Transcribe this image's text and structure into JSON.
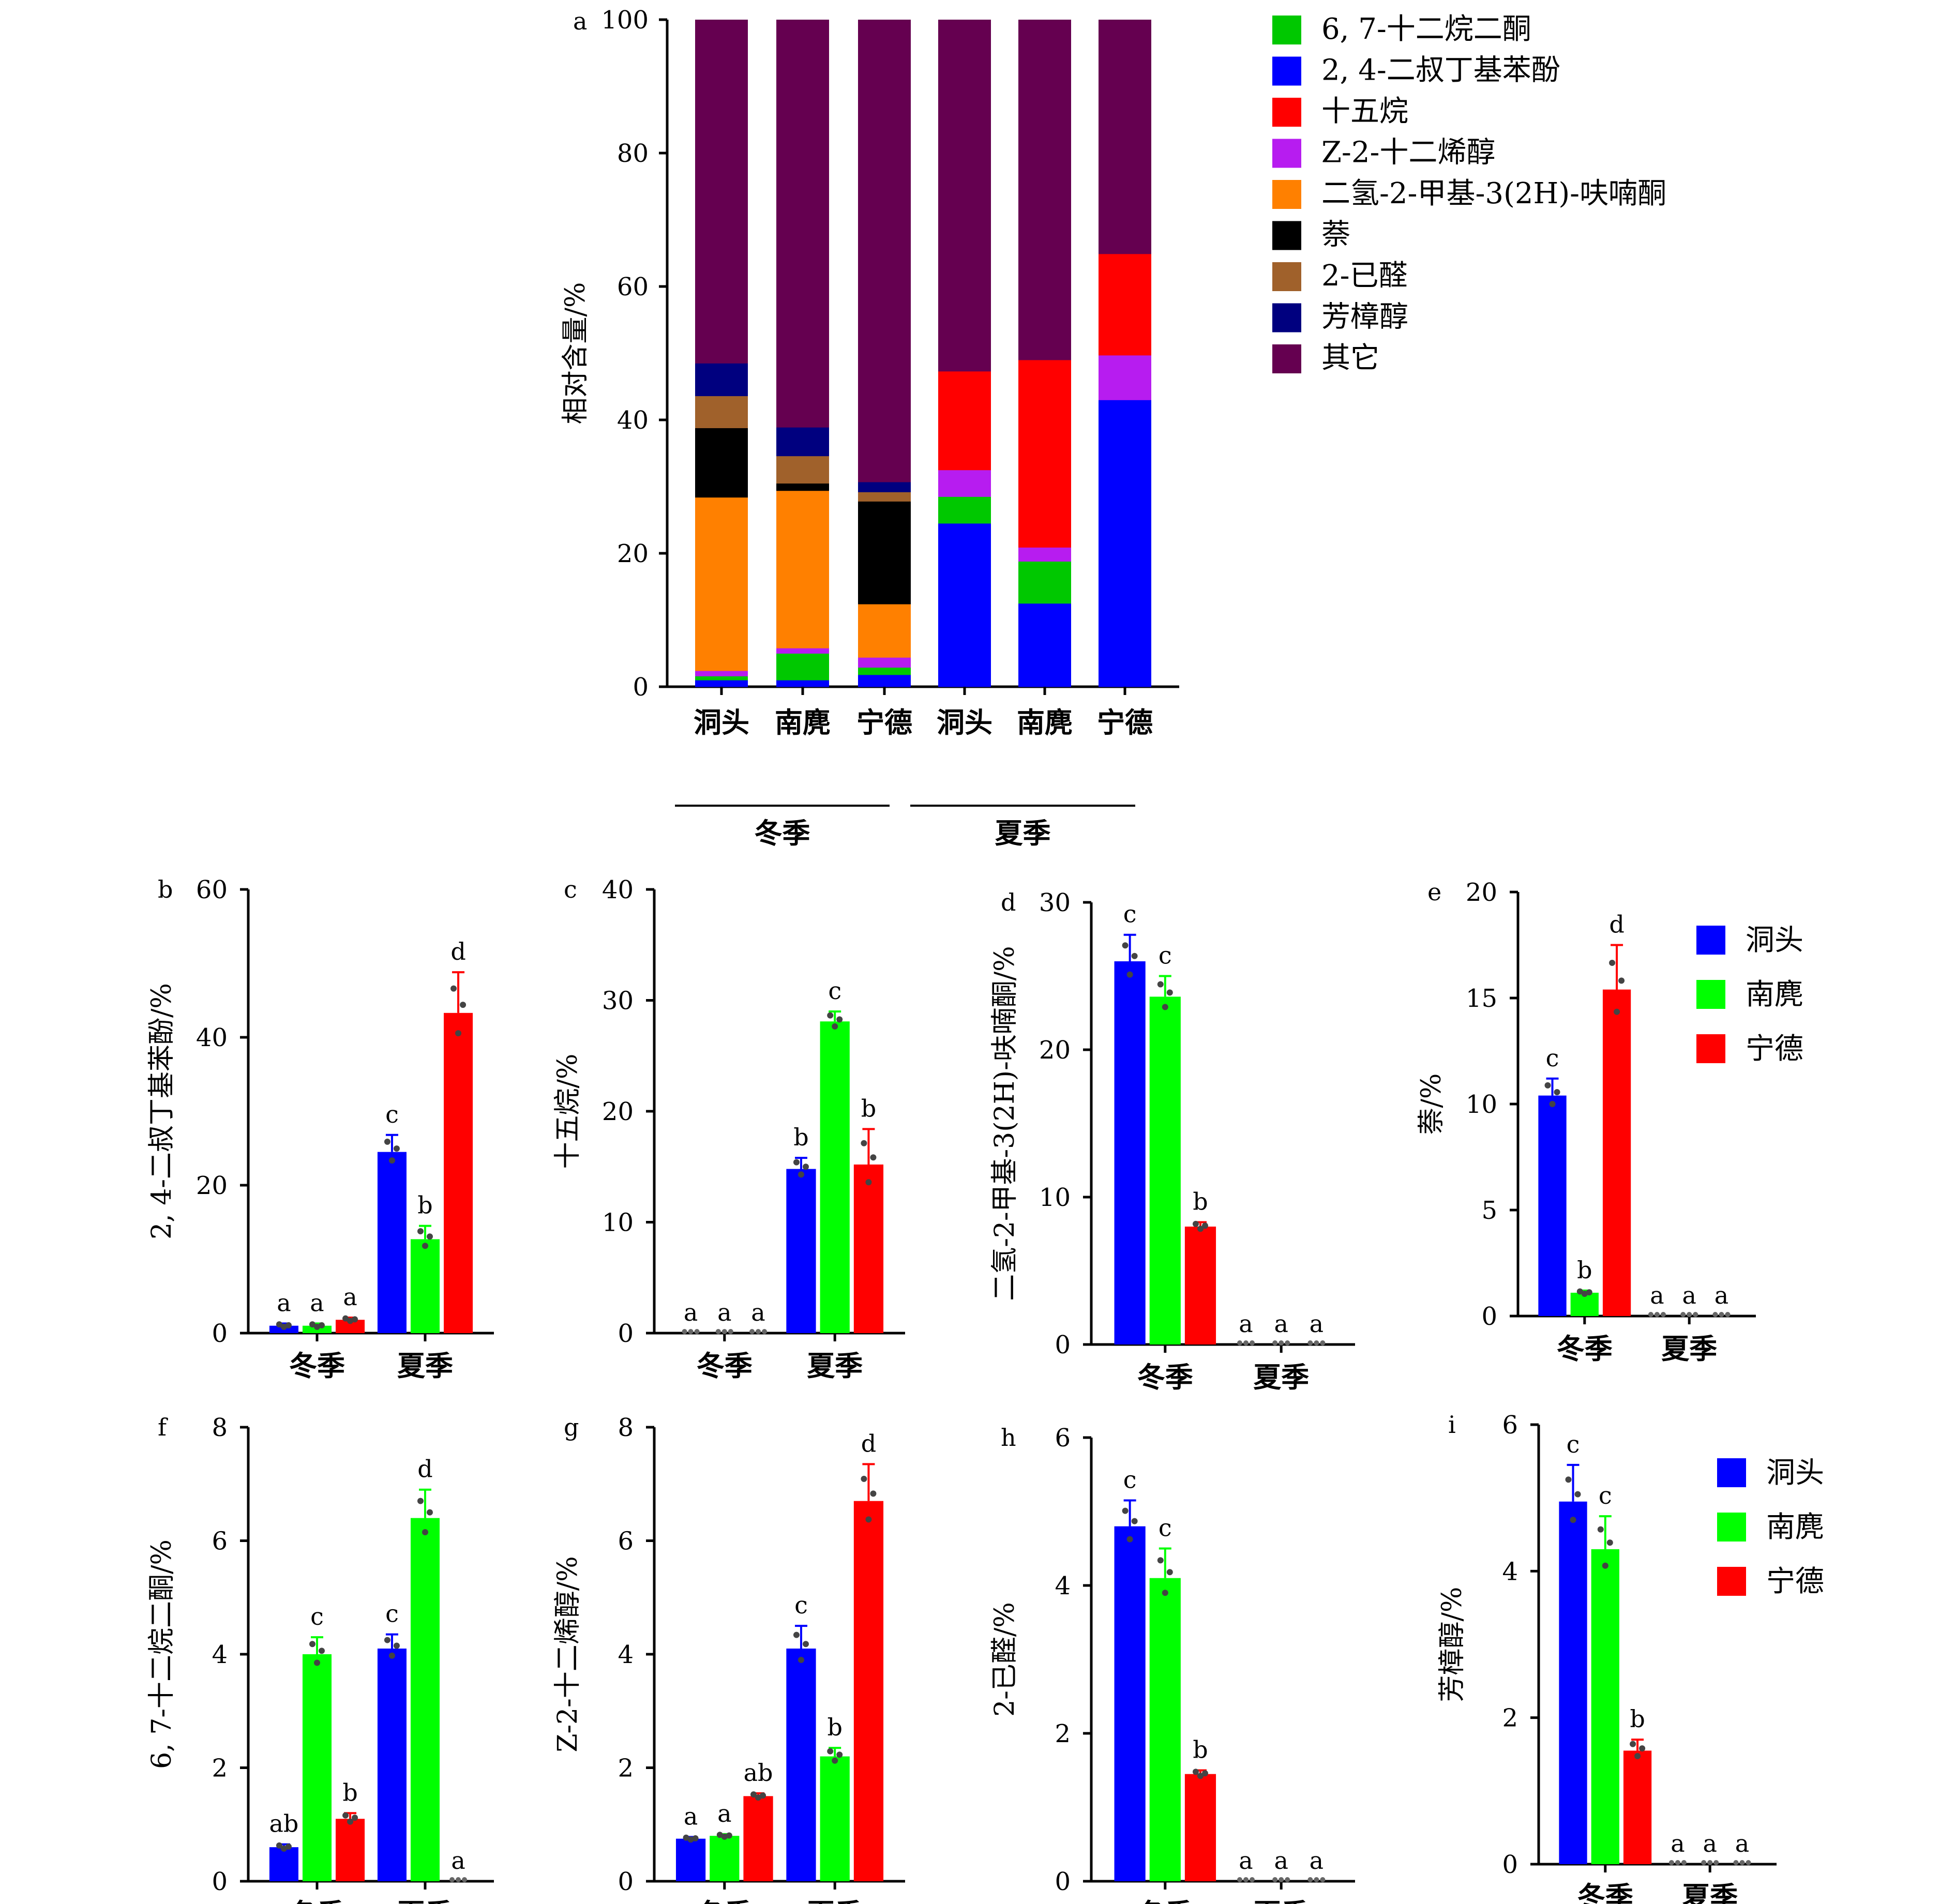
{
  "colors": {
    "dongtou": "#0000ff",
    "nanlu": "#00ff00",
    "ningde": "#ff0000",
    "c_dodecanedione": "#00c800",
    "c_dtbp": "#0000ff",
    "c_pentadecane": "#ff0000",
    "c_dodecenol": "#b71cf0",
    "c_furanone": "#ff8000",
    "c_naphthalene": "#000000",
    "c_hexenal": "#a0612b",
    "c_linalool": "#00007f",
    "c_other": "#650050"
  },
  "legend_series": [
    "洞头",
    "南麂",
    "宁德"
  ],
  "season_groups": [
    "冬季",
    "夏季"
  ],
  "chart_data": [
    {
      "id": "a",
      "type": "bar",
      "stacked": true,
      "panel_label": "a",
      "ylabel": "相对含量/%",
      "ylim": [
        0,
        100
      ],
      "yticks": [
        0,
        20,
        40,
        60,
        80,
        100
      ],
      "categories": [
        "洞头",
        "南麂",
        "宁德",
        "洞头",
        "南麂",
        "宁德"
      ],
      "groups": [
        "冬季",
        "夏季"
      ],
      "legend_placement": "right",
      "series": [
        {
          "name": "2, 4-二叔丁基苯酚",
          "color_key": "c_dtbp",
          "values": [
            1.0,
            1.0,
            1.8,
            24.5,
            12.5,
            43.0
          ]
        },
        {
          "name": "6, 7-十二烷二酮",
          "color_key": "c_dodecanedione",
          "values": [
            0.6,
            4.0,
            1.1,
            4.0,
            6.3,
            0
          ]
        },
        {
          "name": "Z-2-十二烯醇",
          "color_key": "c_dodecenol",
          "values": [
            0.8,
            0.8,
            1.5,
            4.0,
            2.1,
            6.7
          ]
        },
        {
          "name": "十五烷",
          "color_key": "c_pentadecane",
          "values": [
            0,
            0,
            0,
            14.8,
            28.1,
            15.2
          ]
        },
        {
          "name": "二氢-2-甲基-3(2H)-呋喃酮",
          "color_key": "c_furanone",
          "values": [
            26.0,
            23.6,
            8.0,
            0,
            0,
            0
          ]
        },
        {
          "name": "萘",
          "color_key": "c_naphthalene",
          "values": [
            10.4,
            1.1,
            15.4,
            0,
            0,
            0
          ]
        },
        {
          "name": "2-已醛",
          "color_key": "c_hexenal",
          "values": [
            4.8,
            4.1,
            1.4,
            0,
            0,
            0
          ]
        },
        {
          "name": "芳樟醇",
          "color_key": "c_linalool",
          "values": [
            4.9,
            4.3,
            1.5,
            0,
            0,
            0
          ]
        },
        {
          "name": "其它",
          "color_key": "c_other",
          "values": [
            51.5,
            61.1,
            69.3,
            52.7,
            51.0,
            35.1
          ]
        }
      ],
      "legend_order": [
        "6, 7-十二烷二酮",
        "2, 4-二叔丁基苯酚",
        "十五烷",
        "Z-2-十二烯醇",
        "二氢-2-甲基-3(2H)-呋喃酮",
        "萘",
        "2-已醛",
        "芳樟醇",
        "其它"
      ]
    },
    {
      "id": "b",
      "type": "bar",
      "panel_label": "b",
      "ylabel": "2, 4-二叔丁基苯酚/%",
      "ylim": [
        0,
        60
      ],
      "yticks": [
        0,
        20,
        40,
        60
      ],
      "categories": [
        "冬季",
        "夏季"
      ],
      "series": [
        {
          "name": "洞头",
          "values": [
            1.0,
            24.5
          ],
          "errors": [
            0.3,
            2.3
          ],
          "letters": [
            "a",
            "c"
          ]
        },
        {
          "name": "南麂",
          "values": [
            1.0,
            12.7
          ],
          "errors": [
            0.3,
            1.8
          ],
          "letters": [
            "a",
            "b"
          ]
        },
        {
          "name": "宁德",
          "values": [
            1.8,
            43.3
          ],
          "errors": [
            0.3,
            5.5
          ],
          "letters": [
            "a",
            "d"
          ]
        }
      ]
    },
    {
      "id": "c",
      "type": "bar",
      "panel_label": "c",
      "ylabel": "十五烷/%",
      "ylim": [
        0,
        40
      ],
      "yticks": [
        0,
        10,
        20,
        30,
        40
      ],
      "categories": [
        "冬季",
        "夏季"
      ],
      "series": [
        {
          "name": "洞头",
          "values": [
            0,
            14.8
          ],
          "errors": [
            0,
            1.0
          ],
          "letters": [
            "a",
            "b"
          ]
        },
        {
          "name": "南麂",
          "values": [
            0,
            28.1
          ],
          "errors": [
            0,
            0.9
          ],
          "letters": [
            "a",
            "c"
          ]
        },
        {
          "name": "宁德",
          "values": [
            0,
            15.2
          ],
          "errors": [
            0,
            3.2
          ],
          "letters": [
            "a",
            "b"
          ]
        }
      ]
    },
    {
      "id": "d",
      "type": "bar",
      "panel_label": "d",
      "ylabel": "二氢-2-甲基-3(2H)-呋喃酮/%",
      "ylim": [
        0,
        30
      ],
      "yticks": [
        0,
        10,
        20,
        30
      ],
      "categories": [
        "冬季",
        "夏季"
      ],
      "series": [
        {
          "name": "洞头",
          "values": [
            26.0,
            0
          ],
          "errors": [
            1.8,
            0
          ],
          "letters": [
            "c",
            "a"
          ]
        },
        {
          "name": "南麂",
          "values": [
            23.6,
            0
          ],
          "errors": [
            1.4,
            0
          ],
          "letters": [
            "c",
            "a"
          ]
        },
        {
          "name": "宁德",
          "values": [
            8.0,
            0
          ],
          "errors": [
            0.3,
            0
          ],
          "letters": [
            "b",
            "a"
          ]
        }
      ]
    },
    {
      "id": "e",
      "type": "bar",
      "panel_label": "e",
      "ylabel": "萘/%",
      "ylim": [
        0,
        20
      ],
      "yticks": [
        0,
        5,
        10,
        15,
        20
      ],
      "categories": [
        "冬季",
        "夏季"
      ],
      "legend_placement": "top-right",
      "series": [
        {
          "name": "洞头",
          "values": [
            10.4,
            0
          ],
          "errors": [
            0.8,
            0
          ],
          "letters": [
            "c",
            "a"
          ]
        },
        {
          "name": "南麂",
          "values": [
            1.1,
            0
          ],
          "errors": [
            0.1,
            0
          ],
          "letters": [
            "b",
            "a"
          ]
        },
        {
          "name": "宁德",
          "values": [
            15.4,
            0
          ],
          "errors": [
            2.1,
            0
          ],
          "letters": [
            "d",
            "a"
          ]
        }
      ]
    },
    {
      "id": "f",
      "type": "bar",
      "panel_label": "f",
      "ylabel": "6, 7-十二烷二酮/%",
      "ylim": [
        0,
        8
      ],
      "yticks": [
        0,
        2,
        4,
        6,
        8
      ],
      "categories": [
        "冬季",
        "夏季"
      ],
      "series": [
        {
          "name": "洞头",
          "values": [
            0.6,
            4.1
          ],
          "errors": [
            0.05,
            0.25
          ],
          "letters": [
            "ab",
            "c"
          ]
        },
        {
          "name": "南麂",
          "values": [
            4.0,
            6.4
          ],
          "errors": [
            0.3,
            0.5
          ],
          "letters": [
            "c",
            "d"
          ]
        },
        {
          "name": "宁德",
          "values": [
            1.1,
            0
          ],
          "errors": [
            0.1,
            0
          ],
          "letters": [
            "b",
            "a"
          ]
        }
      ]
    },
    {
      "id": "g",
      "type": "bar",
      "panel_label": "g",
      "ylabel": "Z-2-十二烯醇/%",
      "ylim": [
        0,
        8
      ],
      "yticks": [
        0,
        2,
        4,
        6,
        8
      ],
      "categories": [
        "冬季",
        "夏季"
      ],
      "series": [
        {
          "name": "洞头",
          "values": [
            0.75,
            4.1
          ],
          "errors": [
            0.03,
            0.4
          ],
          "letters": [
            "a",
            "c"
          ]
        },
        {
          "name": "南麂",
          "values": [
            0.8,
            2.2
          ],
          "errors": [
            0.03,
            0.15
          ],
          "letters": [
            "a",
            "b"
          ]
        },
        {
          "name": "宁德",
          "values": [
            1.5,
            6.7
          ],
          "errors": [
            0.05,
            0.65
          ],
          "letters": [
            "ab",
            "d"
          ]
        }
      ]
    },
    {
      "id": "h",
      "type": "bar",
      "panel_label": "h",
      "ylabel": "2-已醛/%",
      "ylim": [
        0,
        6
      ],
      "yticks": [
        0,
        2,
        4,
        6
      ],
      "categories": [
        "冬季",
        "夏季"
      ],
      "series": [
        {
          "name": "洞头",
          "values": [
            4.8,
            0
          ],
          "errors": [
            0.35,
            0
          ],
          "letters": [
            "c",
            "a"
          ]
        },
        {
          "name": "南麂",
          "values": [
            4.1,
            0
          ],
          "errors": [
            0.4,
            0
          ],
          "letters": [
            "c",
            "a"
          ]
        },
        {
          "name": "宁德",
          "values": [
            1.45,
            0
          ],
          "errors": [
            0.05,
            0
          ],
          "letters": [
            "b",
            "a"
          ]
        }
      ]
    },
    {
      "id": "i",
      "type": "bar",
      "panel_label": "i",
      "ylabel": "芳樟醇/%",
      "ylim": [
        0,
        6
      ],
      "yticks": [
        0,
        2,
        4,
        6
      ],
      "categories": [
        "冬季",
        "夏季"
      ],
      "legend_placement": "top-right",
      "series": [
        {
          "name": "洞头",
          "values": [
            4.95,
            0
          ],
          "errors": [
            0.5,
            0
          ],
          "letters": [
            "c",
            "a"
          ]
        },
        {
          "name": "南麂",
          "values": [
            4.3,
            0
          ],
          "errors": [
            0.45,
            0
          ],
          "letters": [
            "c",
            "a"
          ]
        },
        {
          "name": "宁德",
          "values": [
            1.55,
            0
          ],
          "errors": [
            0.15,
            0
          ],
          "letters": [
            "b",
            "a"
          ]
        }
      ]
    }
  ]
}
